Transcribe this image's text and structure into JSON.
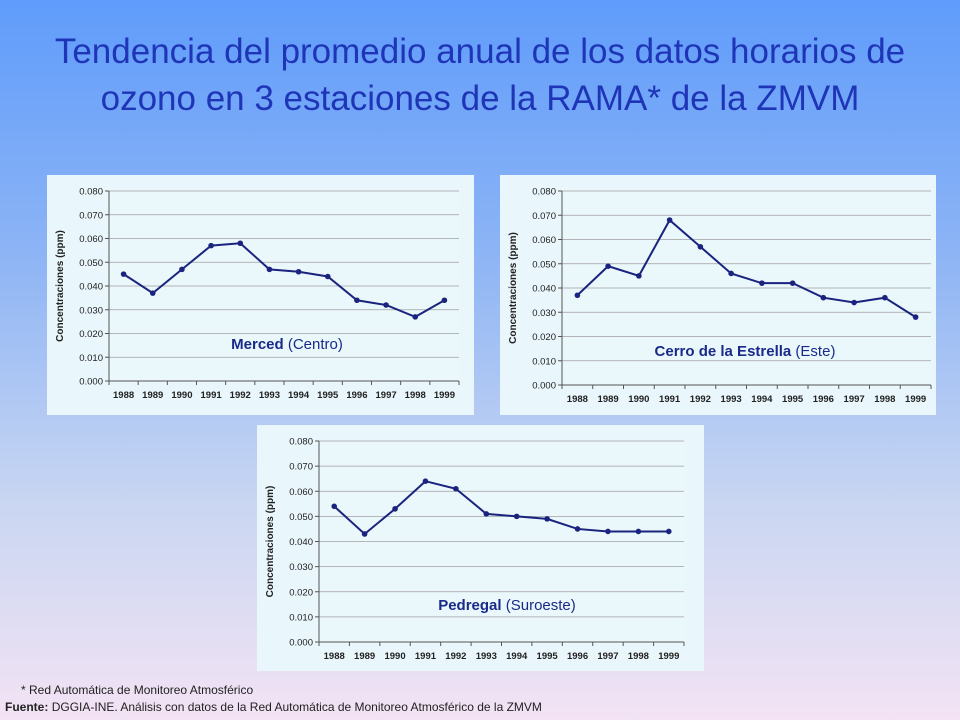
{
  "title": "Tendencia del promedio anual de los datos horarios de ozono en 3 estaciones de la RAMA* de la ZMVM",
  "footnote": "* Red Automática de Monitoreo Atmosférico",
  "source": {
    "label": "Fuente:",
    "text": "DGGIA-INE.  Análisis con datos de la Red Automática de Monitoreo Atmosférico de la ZMVM"
  },
  "colors": {
    "line": "#1a237e",
    "title": "#1f35b8",
    "panel": "#e9f6fb"
  },
  "chart_data": [
    {
      "type": "line",
      "station": "Merced",
      "region": "(Centro)",
      "ylabel": "Concentraciones  (ppm)",
      "ylim": [
        0,
        0.08
      ],
      "yticks": [
        "0.000",
        "0.010",
        "0.020",
        "0.030",
        "0.040",
        "0.050",
        "0.060",
        "0.070",
        "0.080"
      ],
      "x": [
        "1988",
        "1989",
        "1990",
        "1991",
        "1992",
        "1993",
        "1994",
        "1995",
        "1996",
        "1997",
        "1998",
        "1999"
      ],
      "values": [
        0.045,
        0.037,
        0.047,
        0.057,
        0.058,
        0.047,
        0.046,
        0.044,
        0.034,
        0.032,
        0.027,
        0.034
      ]
    },
    {
      "type": "line",
      "station": "Cerro de la Estrella",
      "region": "(Este)",
      "ylabel": "Concentraciones  (ppm)",
      "ylim": [
        0,
        0.08
      ],
      "yticks": [
        "0.000",
        "0.010",
        "0.020",
        "0.030",
        "0.040",
        "0.050",
        "0.060",
        "0.070",
        "0.080"
      ],
      "x": [
        "1988",
        "1989",
        "1990",
        "1991",
        "1992",
        "1993",
        "1994",
        "1995",
        "1996",
        "1997",
        "1998",
        "1999"
      ],
      "values": [
        0.037,
        0.049,
        0.045,
        0.068,
        0.057,
        0.046,
        0.042,
        0.042,
        0.036,
        0.034,
        0.036,
        0.028
      ]
    },
    {
      "type": "line",
      "station": "Pedregal",
      "region": "(Suroeste)",
      "ylabel": "Concentraciones  (ppm)",
      "ylim": [
        0,
        0.08
      ],
      "yticks": [
        "0.000",
        "0.010",
        "0.020",
        "0.030",
        "0.040",
        "0.050",
        "0.060",
        "0.070",
        "0.080"
      ],
      "x": [
        "1988",
        "1989",
        "1990",
        "1991",
        "1992",
        "1993",
        "1994",
        "1995",
        "1996",
        "1997",
        "1998",
        "1999"
      ],
      "values": [
        0.054,
        0.043,
        0.053,
        0.064,
        0.061,
        0.051,
        0.05,
        0.049,
        0.045,
        0.044,
        0.044,
        0.044
      ]
    }
  ]
}
